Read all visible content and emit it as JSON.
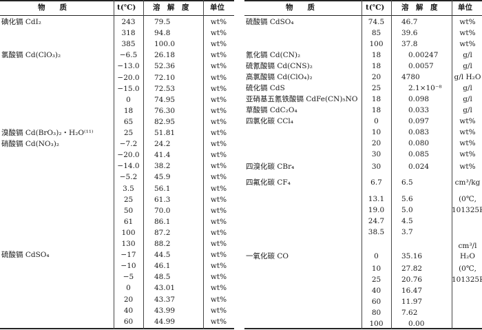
{
  "left_table": {
    "headers": {
      "substance": "物　　质",
      "temp": "t(℃)",
      "solubility": "溶　解　度",
      "unit": "单位"
    },
    "rows": [
      {
        "substance": "碘化镉 CdI₂",
        "t": "243",
        "s": "79.5",
        "u": "wt%"
      },
      {
        "substance": "",
        "t": "318",
        "s": "94.8",
        "u": "wt%"
      },
      {
        "substance": "",
        "t": "385",
        "s": "100.0",
        "u": "wt%"
      },
      {
        "substance": "氯酸镉 Cd(ClO₃)₂",
        "t": "−6.5",
        "s": "26.18",
        "u": "wt%"
      },
      {
        "substance": "",
        "t": "−13.0",
        "s": "52.36",
        "u": "wt%"
      },
      {
        "substance": "",
        "t": "−20.0",
        "s": "72.10",
        "u": "wt%"
      },
      {
        "substance": "",
        "t": "−15.0",
        "s": "72.53",
        "u": "wt%"
      },
      {
        "substance": "",
        "t": "0",
        "s": "74.95",
        "u": "wt%"
      },
      {
        "substance": "",
        "t": "18",
        "s": "76.30",
        "u": "wt%"
      },
      {
        "substance": "",
        "t": "65",
        "s": "82.95",
        "u": "wt%"
      },
      {
        "substance": "溴酸镉 Cd(BrO₃)₂・H₂O⁽¹¹⁾",
        "t": "25",
        "s": "51.81",
        "u": "wt%"
      },
      {
        "substance": "硝酸镉 Cd(NO₃)₂",
        "t": "−7.2",
        "s": "24.2",
        "u": "wt%"
      },
      {
        "substance": "",
        "t": "−20.0",
        "s": "41.4",
        "u": "wt%"
      },
      {
        "substance": "",
        "t": "−14.0",
        "s": "38.2",
        "u": "wt%"
      },
      {
        "substance": "",
        "t": "−5.2",
        "s": "45.9",
        "u": "wt%"
      },
      {
        "substance": "",
        "t": "3.5",
        "s": "56.1",
        "u": "wt%"
      },
      {
        "substance": "",
        "t": "25",
        "s": "61.3",
        "u": "wt%"
      },
      {
        "substance": "",
        "t": "50",
        "s": "70.0",
        "u": "wt%"
      },
      {
        "substance": "",
        "t": "61",
        "s": "86.1",
        "u": "wt%"
      },
      {
        "substance": "",
        "t": "100",
        "s": "87.2",
        "u": "wt%"
      },
      {
        "substance": "",
        "t": "130",
        "s": "88.2",
        "u": "wt%"
      },
      {
        "substance": "硫酸镉 CdSO₄",
        "t": "−17",
        "s": "44.5",
        "u": "wt%"
      },
      {
        "substance": "",
        "t": "−10",
        "s": "46.1",
        "u": "wt%"
      },
      {
        "substance": "",
        "t": "−5",
        "s": "48.5",
        "u": "wt%"
      },
      {
        "substance": "",
        "t": "0",
        "s": "43.01",
        "u": "wt%"
      },
      {
        "substance": "",
        "t": "20",
        "s": "43.37",
        "u": "wt%"
      },
      {
        "substance": "",
        "t": "40",
        "s": "43.99",
        "u": "wt%"
      },
      {
        "substance": "",
        "t": "60",
        "s": "44.99",
        "u": "wt%"
      }
    ]
  },
  "right_table": {
    "headers": {
      "substance": "物　　质",
      "temp": "t(℃)",
      "solubility": "溶　解　度",
      "unit": "单位"
    },
    "rows": [
      {
        "substance": "硫酸镉 CdSO₄",
        "t": "74.5",
        "s": "46.7",
        "u": "wt%"
      },
      {
        "substance": "",
        "t": "85",
        "s": "39.6",
        "u": "wt%"
      },
      {
        "substance": "",
        "t": "100",
        "s": "37.8",
        "u": "wt%"
      },
      {
        "substance": "氰化镉 Cd(CN)₂",
        "t": "18",
        "s": "0.00247",
        "u": "g/l"
      },
      {
        "substance": "硫氰酸镉 Cd(CNS)₂",
        "t": "18",
        "s": "0.0057",
        "u": "g/l"
      },
      {
        "substance": "高氯酸镉 Cd(ClO₄)₂",
        "t": "20",
        "s": "4780",
        "u": "g/l H₂O"
      },
      {
        "substance": "硫化镉 CdS",
        "t": "25",
        "s": "2.1×10⁻⁸",
        "u": "g/l"
      },
      {
        "substance": "亚硝基五氰铁酸镉 CdFe(CN)₅NO",
        "t": "18",
        "s": "0.098",
        "u": "g/l"
      },
      {
        "substance": "草酸镉 CdC₂O₄",
        "t": "18",
        "s": "0.033",
        "u": "g/l"
      },
      {
        "substance": "四氯化碳 CCl₄",
        "t": "0",
        "s": "0.097",
        "u": "wt%"
      },
      {
        "substance": "",
        "t": "10",
        "s": "0.083",
        "u": "wt%"
      },
      {
        "substance": "",
        "t": "20",
        "s": "0.080",
        "u": "wt%"
      },
      {
        "substance": "",
        "t": "30",
        "s": "0.085",
        "u": "wt%"
      },
      {
        "substance": "四溴化碳 CBr₄",
        "t": "30",
        "s": "0.024",
        "u": "wt%"
      },
      {
        "substance": "四氟化碳 CF₄",
        "t": "6.7",
        "s": "6.5",
        "u": "cm³/kg"
      },
      {
        "substance": "",
        "t": "13.1",
        "s": "5.6",
        "u": "(0℃,"
      },
      {
        "substance": "",
        "t": "19.0",
        "s": "5.0",
        "u": "101325Pa)"
      },
      {
        "substance": "",
        "t": "24.7",
        "s": "4.5",
        "u": ""
      },
      {
        "substance": "",
        "t": "38.5",
        "s": "3.7",
        "u": ""
      },
      {
        "substance": "",
        "t": "",
        "s": "",
        "u": "cm³/l"
      },
      {
        "substance": "一氧化碳 CO",
        "t": "0",
        "s": "35.16",
        "u": "H₂O"
      },
      {
        "substance": "",
        "t": "10",
        "s": "27.82",
        "u": "(0℃,"
      },
      {
        "substance": "",
        "t": "25",
        "s": "20.76",
        "u": "101325Pa)"
      },
      {
        "substance": "",
        "t": "40",
        "s": "16.47",
        "u": ""
      },
      {
        "substance": "",
        "t": "60",
        "s": "11.97",
        "u": ""
      },
      {
        "substance": "",
        "t": "80",
        "s": "7.62",
        "u": ""
      },
      {
        "substance": "",
        "t": "100",
        "s": "0.00",
        "u": ""
      }
    ]
  }
}
